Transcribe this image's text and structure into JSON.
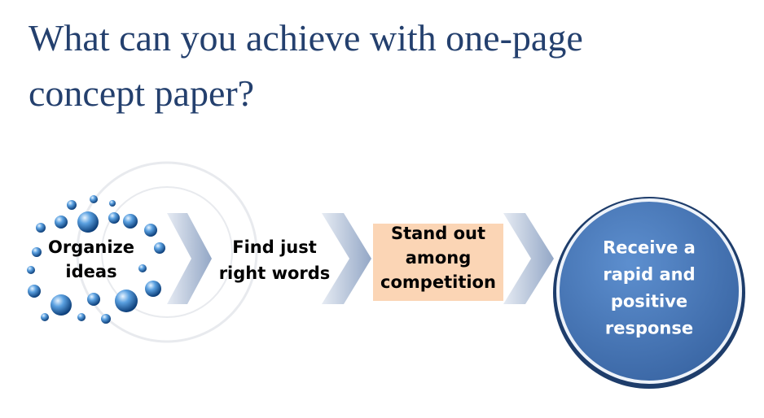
{
  "header": {
    "title": [
      "What can you achieve with one-page",
      "concept paper?"
    ]
  },
  "steps": [
    {
      "lines": [
        "Organize",
        "ideas"
      ]
    },
    {
      "lines": [
        "Find just",
        "right words"
      ]
    },
    {
      "lines": [
        "Stand out",
        "among",
        "competition"
      ]
    },
    {
      "lines": [
        "Receive a",
        "rapid and",
        "positive",
        "response"
      ]
    }
  ]
}
